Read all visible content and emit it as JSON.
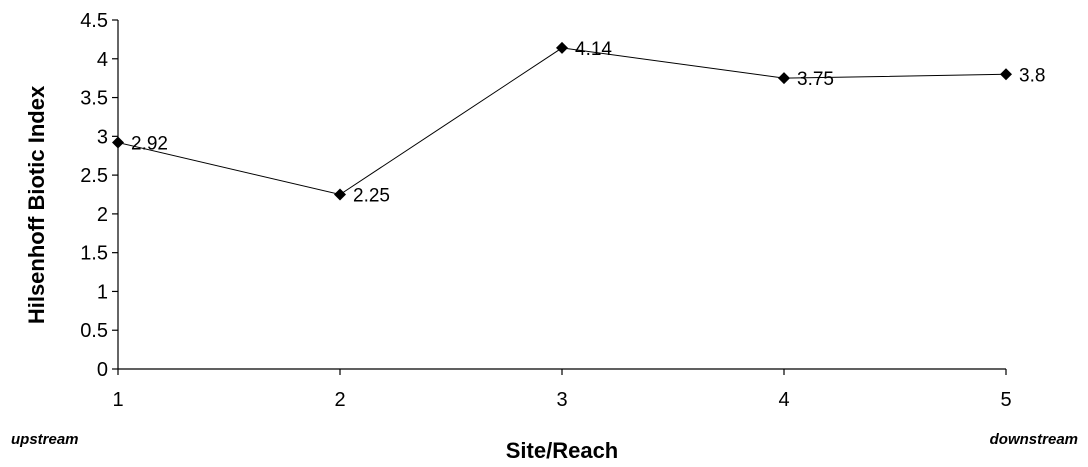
{
  "chart_data": {
    "type": "line",
    "x": [
      1,
      2,
      3,
      4,
      5
    ],
    "series": [
      {
        "values": [
          2.92,
          2.25,
          4.14,
          3.75,
          3.8
        ],
        "data_labels": [
          "2.92",
          "2.25",
          "4.14",
          "3.75",
          "3.8"
        ]
      }
    ],
    "xlabel": "Site/Reach",
    "ylabel": "Hilsenhoff Biotic Index",
    "ylim": [
      0,
      4.5
    ],
    "yticks": [
      "0",
      "0.5",
      "1",
      "1.5",
      "2",
      "2.5",
      "3",
      "3.5",
      "4",
      "4.5"
    ],
    "xticks": [
      "1",
      "2",
      "3",
      "4",
      "5"
    ],
    "annotations": {
      "left": "upstream",
      "right": "downstream"
    },
    "grid": false,
    "marker": "diamond",
    "line_color": "#000000"
  }
}
